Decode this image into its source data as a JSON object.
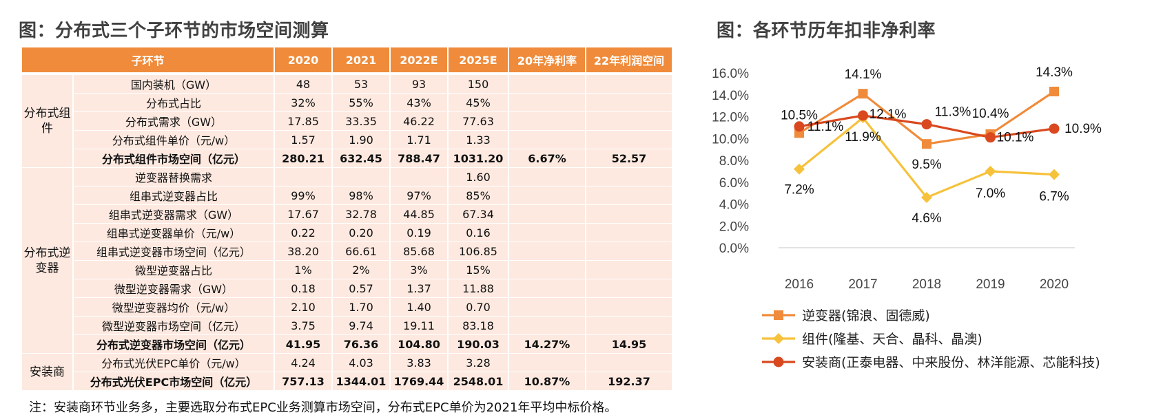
{
  "left_title": "图：分布式三个子环节的市场空间测算",
  "right_title": "图：各环节历年扣非净利率",
  "note": "注：安装商环节业务多，主要选取分布式EPC业务测算市场空间，分布式EPC单价为2021年平均中标价格。",
  "colors": {
    "header": "#ef8b3a",
    "cell": "#fde9e0",
    "s1": "#ef8b3a",
    "s2": "#f6c23c",
    "s3": "#d9481f"
  },
  "table": {
    "headers": [
      "子环节",
      "2020",
      "2021",
      "2022E",
      "2025E",
      "20年净利率",
      "22年利润空间"
    ],
    "groups": [
      {
        "name": "分布式组件",
        "rows": [
          {
            "item": "国内装机（GW）",
            "v": [
              "48",
              "53",
              "93",
              "150",
              "",
              ""
            ],
            "bold": false
          },
          {
            "item": "分布式占比",
            "v": [
              "32%",
              "55%",
              "43%",
              "45%",
              "",
              ""
            ],
            "bold": false
          },
          {
            "item": "分布式需求（GW）",
            "v": [
              "17.85",
              "33.35",
              "46.22",
              "77.63",
              "",
              ""
            ],
            "bold": false
          },
          {
            "item": "分布式组件单价（元/w）",
            "v": [
              "1.57",
              "1.90",
              "1.71",
              "1.33",
              "",
              ""
            ],
            "bold": false
          },
          {
            "item": "分布式组件市场空间（亿元）",
            "v": [
              "280.21",
              "632.45",
              "788.47",
              "1031.20",
              "6.67%",
              "52.57"
            ],
            "bold": true
          }
        ]
      },
      {
        "name": "分布式逆变器",
        "rows": [
          {
            "item": "逆变器替换需求",
            "v": [
              "",
              "",
              "",
              "1.60",
              "",
              ""
            ],
            "bold": false
          },
          {
            "item": "组串式逆变器占比",
            "v": [
              "99%",
              "98%",
              "97%",
              "85%",
              "",
              ""
            ],
            "bold": false
          },
          {
            "item": "组串式逆变器需求（GW）",
            "v": [
              "17.67",
              "32.78",
              "44.85",
              "67.34",
              "",
              ""
            ],
            "bold": false
          },
          {
            "item": "组串式逆变器单价（元/w）",
            "v": [
              "0.22",
              "0.20",
              "0.19",
              "0.16",
              "",
              ""
            ],
            "bold": false
          },
          {
            "item": "组串式逆变器市场空间（亿元）",
            "v": [
              "38.20",
              "66.61",
              "85.68",
              "106.85",
              "",
              ""
            ],
            "bold": false
          },
          {
            "item": "微型逆变器占比",
            "v": [
              "1%",
              "2%",
              "3%",
              "15%",
              "",
              ""
            ],
            "bold": false
          },
          {
            "item": "微型逆变器需求（GW）",
            "v": [
              "0.18",
              "0.57",
              "1.37",
              "11.88",
              "",
              ""
            ],
            "bold": false
          },
          {
            "item": "微型逆变器均价（元/w）",
            "v": [
              "2.10",
              "1.70",
              "1.40",
              "0.70",
              "",
              ""
            ],
            "bold": false
          },
          {
            "item": "微型逆变器市场空间（亿元）",
            "v": [
              "3.75",
              "9.74",
              "19.11",
              "83.18",
              "",
              ""
            ],
            "bold": false
          },
          {
            "item": "分布式逆变器市场空间（亿元）",
            "v": [
              "41.95",
              "76.36",
              "104.80",
              "190.03",
              "14.27%",
              "14.95"
            ],
            "bold": true
          }
        ]
      },
      {
        "name": "安装商",
        "rows": [
          {
            "item": "分布式光伏EPC单价（元/w）",
            "v": [
              "4.24",
              "4.03",
              "3.83",
              "3.28",
              "",
              ""
            ],
            "bold": false
          },
          {
            "item": "分布式光伏EPC市场空间（亿元）",
            "v": [
              "757.13",
              "1344.01",
              "1769.44",
              "2548.01",
              "10.87%",
              "192.37"
            ],
            "bold": true
          }
        ]
      }
    ]
  },
  "chart_data": {
    "type": "line",
    "categories": [
      "2016",
      "2017",
      "2018",
      "2019",
      "2020"
    ],
    "ylim": [
      0,
      16
    ],
    "yticks": [
      "0.0%",
      "2.0%",
      "4.0%",
      "6.0%",
      "8.0%",
      "10.0%",
      "12.0%",
      "14.0%",
      "16.0%"
    ],
    "legend_position": "bottom",
    "series": [
      {
        "name": "逆变器(锦浪、固德威)",
        "marker": "square",
        "color": "#ef8b3a",
        "values": [
          10.5,
          14.1,
          9.5,
          10.4,
          14.3
        ],
        "labels": [
          "10.5%",
          "14.1%",
          "9.5%",
          "10.4%",
          "14.3%"
        ]
      },
      {
        "name": "组件(隆基、天合、晶科、晶澳)",
        "marker": "diamond",
        "color": "#f6c23c",
        "values": [
          7.2,
          11.9,
          4.6,
          7.0,
          6.7
        ],
        "labels": [
          "7.2%",
          "11.9%",
          "4.6%",
          "7.0%",
          "6.7%"
        ]
      },
      {
        "name": "安装商(正泰电器、中来股份、林洋能源、芯能科技)",
        "marker": "circle",
        "color": "#d9481f",
        "values": [
          11.1,
          12.1,
          11.3,
          10.1,
          10.9
        ],
        "labels": [
          "11.1%",
          "12.1%",
          "11.3%",
          "10.1%",
          "10.9%"
        ]
      }
    ]
  }
}
